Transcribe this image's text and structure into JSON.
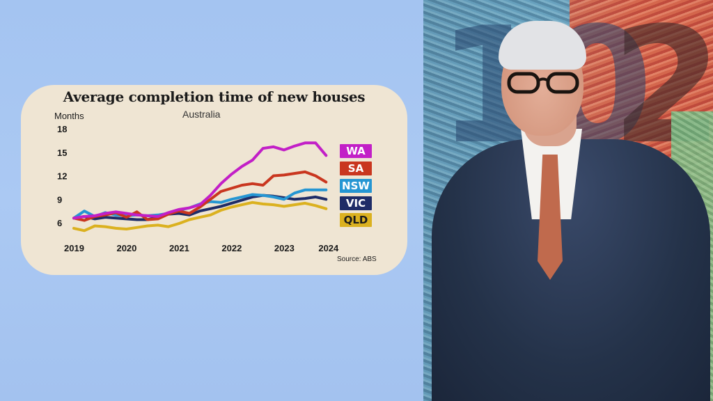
{
  "chart_data": {
    "type": "line",
    "title": "Average completion time of new houses",
    "subtitle": "Australia",
    "ylabel": "Months",
    "ylim": [
      6,
      18
    ],
    "yticks": [
      6,
      9,
      12,
      15,
      18
    ],
    "xlim": [
      2019,
      2024.3
    ],
    "xticks": [
      2019,
      2020,
      2021,
      2022,
      2023,
      2024
    ],
    "source": "Source: ABS",
    "x": [
      2019.0,
      2019.2,
      2019.4,
      2019.6,
      2019.8,
      2020.0,
      2020.2,
      2020.4,
      2020.6,
      2020.8,
      2021.0,
      2021.2,
      2021.4,
      2021.6,
      2021.8,
      2022.0,
      2022.2,
      2022.4,
      2022.6,
      2022.8,
      2023.0,
      2023.2,
      2023.4,
      2023.6,
      2023.8
    ],
    "series": [
      {
        "name": "WA",
        "color": "#c21fc7",
        "values": [
          6.6,
          6.8,
          6.9,
          7.2,
          7.4,
          7.2,
          7.0,
          6.9,
          6.8,
          7.3,
          7.7,
          7.9,
          8.3,
          9.5,
          11.0,
          12.2,
          13.2,
          14.0,
          15.5,
          15.7,
          15.3,
          15.8,
          16.2,
          16.2,
          14.6
        ]
      },
      {
        "name": "SA",
        "color": "#c9361f",
        "values": [
          6.6,
          6.3,
          6.8,
          7.0,
          7.3,
          6.7,
          7.4,
          6.4,
          6.5,
          7.1,
          7.5,
          7.2,
          8.0,
          9.0,
          10.0,
          10.4,
          10.8,
          11.0,
          10.8,
          12.0,
          12.1,
          12.3,
          12.5,
          12.0,
          11.2
        ]
      },
      {
        "name": "NSW",
        "color": "#2596d3",
        "values": [
          6.6,
          7.5,
          6.8,
          7.3,
          7.0,
          6.9,
          7.0,
          6.9,
          7.0,
          7.2,
          7.6,
          7.9,
          8.4,
          8.7,
          8.6,
          9.0,
          9.3,
          9.6,
          9.5,
          9.3,
          9.0,
          9.8,
          10.2,
          10.2,
          10.2
        ]
      },
      {
        "name": "VIC",
        "color": "#1e2c67",
        "values": [
          6.6,
          6.8,
          6.5,
          6.7,
          6.6,
          6.5,
          6.4,
          6.4,
          6.7,
          7.1,
          7.2,
          7.0,
          7.5,
          7.8,
          8.1,
          8.5,
          8.9,
          9.3,
          9.5,
          9.4,
          9.2,
          9.0,
          9.1,
          9.3,
          9.0
        ]
      },
      {
        "name": "QLD",
        "color": "#dbb11f",
        "values": [
          5.3,
          5.0,
          5.6,
          5.5,
          5.3,
          5.2,
          5.4,
          5.6,
          5.7,
          5.5,
          5.9,
          6.4,
          6.7,
          7.0,
          7.6,
          8.0,
          8.3,
          8.6,
          8.4,
          8.3,
          8.1,
          8.3,
          8.5,
          8.2,
          7.8
        ]
      }
    ]
  }
}
